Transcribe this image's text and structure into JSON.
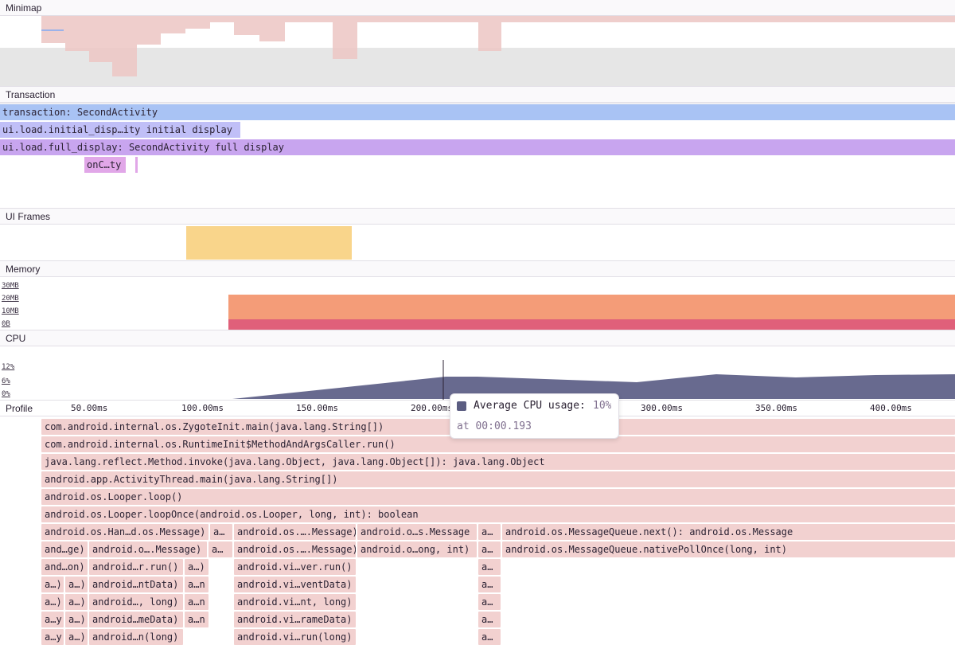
{
  "sections": {
    "minimap": "Minimap",
    "transaction": "Transaction",
    "ui_frames": "UI Frames",
    "memory": "Memory",
    "cpu": "CPU",
    "profile": "Profile"
  },
  "transaction_spans": [
    "transaction: SecondActivity",
    "ui.load.initial_disp…ity initial display",
    "ui.load.full_display: SecondActivity full display",
    "onC…ty"
  ],
  "memory_axis": [
    "30MB",
    "20MB",
    "10MB",
    "0B"
  ],
  "cpu_axis": [
    "12%",
    "6%",
    "0%"
  ],
  "time_ticks": [
    "50.00ms",
    "100.00ms",
    "150.00ms",
    "200.00ms",
    "300.00ms",
    "350.00ms",
    "400.00ms"
  ],
  "tooltip": {
    "label": "Average CPU usage:",
    "value": "10%",
    "time": "at 00:00.193"
  },
  "flame_rows": [
    [
      "com.android.internal.os.ZygoteInit.main(java.lang.String[])"
    ],
    [
      "com.android.internal.os.RuntimeInit$MethodAndArgsCaller.run()"
    ],
    [
      "java.lang.reflect.Method.invoke(java.lang.Object, java.lang.Object[]): java.lang.Object"
    ],
    [
      "android.app.ActivityThread.main(java.lang.String[])"
    ],
    [
      "android.os.Looper.loop()"
    ],
    [
      "android.os.Looper.loopOnce(android.os.Looper, long, int): boolean"
    ],
    [
      "android.os.Han…d.os.Message)",
      "a…",
      "android.os.….Message)",
      "android.o…s.Message",
      "a…",
      "android.os.MessageQueue.next(): android.os.Message"
    ],
    [
      "and…ge)",
      "android.o….Message)",
      "a…",
      "android.os.….Message)",
      "android.o…ong, int)",
      "a…",
      "android.os.MessageQueue.nativePollOnce(long, int)"
    ],
    [
      "and…on)",
      "android…r.run()",
      "a…)",
      "android.vi…ver.run()",
      "a…"
    ],
    [
      "a…)",
      "a…)",
      "android…ntData)",
      "a…n",
      "android.vi…ventData)",
      "a…"
    ],
    [
      "a…)",
      "a…)",
      "android…, long)",
      "a…n",
      "android.vi…nt, long)",
      "a…"
    ],
    [
      "a…y",
      "a…)",
      "android…meData)",
      "a…n",
      "android.vi…rameData)",
      "a…"
    ],
    [
      "a…y",
      "a…)",
      "android…n(long)",
      "android.vi…run(long)",
      "a…"
    ]
  ]
}
